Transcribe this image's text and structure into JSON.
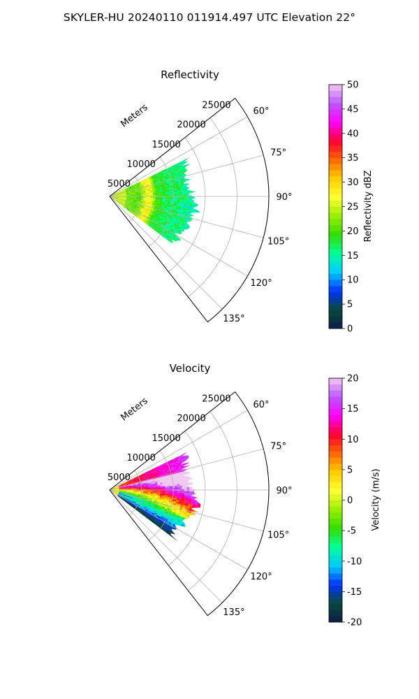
{
  "figure": {
    "title": "SKYLER-HU  20240110  011914.497 UTC Elevation 22°"
  },
  "chart_data": [
    {
      "type": "heatmap",
      "subtype": "polar-sector",
      "title": "Reflectivity",
      "radial_axis": {
        "label": "Meters",
        "ticks": [
          "5000",
          "10000",
          "15000",
          "20000",
          "25000"
        ],
        "range": [
          0,
          25000
        ]
      },
      "angular_axis": {
        "ticks": [
          "60°",
          "75°",
          "90°",
          "105°",
          "120°",
          "135°"
        ],
        "range_deg": [
          52,
          142
        ]
      },
      "data_extent": {
        "min_range_m": 0,
        "max_range_m": 14000,
        "azimuth_range_deg": [
          64,
          127
        ]
      },
      "colorbar": {
        "label": "Reflectivity dBZ",
        "ticks": [
          "0",
          "5",
          "10",
          "15",
          "20",
          "25",
          "30",
          "35",
          "40",
          "45",
          "50"
        ],
        "range": [
          0,
          50
        ],
        "colormap": "pyart_HomeyerRainbow"
      },
      "grid": true
    },
    {
      "type": "heatmap",
      "subtype": "polar-sector",
      "title": "Velocity",
      "radial_axis": {
        "label": "Meters",
        "ticks": [
          "5000",
          "10000",
          "15000",
          "20000",
          "25000"
        ],
        "range": [
          0,
          25000
        ]
      },
      "angular_axis": {
        "ticks": [
          "60°",
          "75°",
          "90°",
          "105°",
          "120°",
          "135°"
        ],
        "range_deg": [
          52,
          142
        ]
      },
      "data_extent": {
        "min_range_m": 0,
        "max_range_m": 14000,
        "azimuth_range_deg": [
          64,
          127
        ]
      },
      "colorbar": {
        "label": "Velocity (m/s)",
        "ticks": [
          "-20",
          "-15",
          "-10",
          "-5",
          "0",
          "5",
          "10",
          "15",
          "20"
        ],
        "range": [
          -20,
          20
        ],
        "colormap": "pyart_HomeyerRainbow"
      },
      "grid": true
    }
  ],
  "colormap_stops": [
    "#0d1b4b",
    "#0a4a3a",
    "#0033ff",
    "#00ccff",
    "#00ff99",
    "#33dd00",
    "#99ee00",
    "#ffff33",
    "#ffcc00",
    "#ff6600",
    "#ff0033",
    "#ff00ff",
    "#bb55ff",
    "#f2c9f2"
  ]
}
